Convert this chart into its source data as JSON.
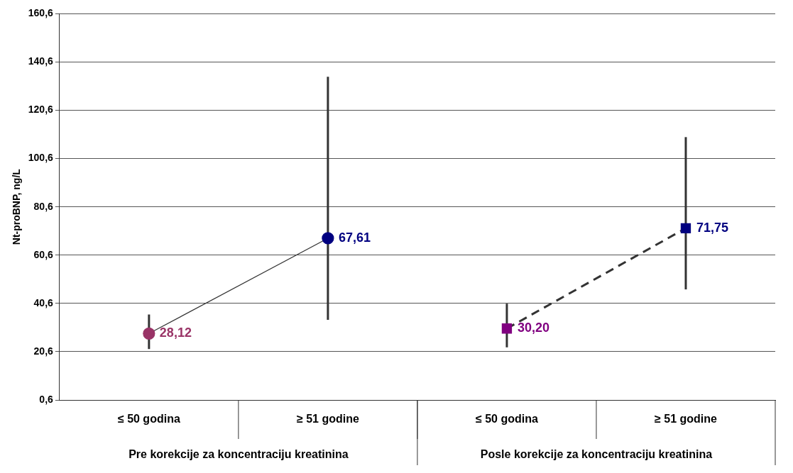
{
  "chart_data": {
    "type": "line",
    "ylabel": "Nt-proBNP, ng/L",
    "categories": [
      "≤ 50 godina",
      "≥ 51 godine",
      "≤ 50 godina",
      "≥ 51 godine"
    ],
    "annotations": [
      "Pre korekcije za koncentraciju kreatinina",
      "Posle korekcije za koncentraciju kreatinina"
    ],
    "series": [
      {
        "colors": [
          "#993366",
          "#000080",
          null,
          null
        ],
        "color": "#333333",
        "values": [
          28.12,
          67.61,
          null,
          null
        ],
        "value_labels": [
          "28,12",
          "67,61",
          null,
          null
        ],
        "errors": [
          [
            21.7,
            36.0
          ],
          [
            33.8,
            134.5
          ],
          null,
          null
        ],
        "marker": "circle",
        "line_style": "solid"
      },
      {
        "colors": [
          null,
          null,
          "#800080",
          "#000080"
        ],
        "color": "#333333",
        "values": [
          null,
          null,
          30.2,
          71.75
        ],
        "value_labels": [
          null,
          null,
          "30,20",
          "71,75"
        ],
        "errors": [
          null,
          null,
          [
            22.4,
            40.5
          ],
          [
            46.4,
            109.5
          ]
        ],
        "marker": "square",
        "line_style": "dashed"
      }
    ],
    "ylim": [
      0.6,
      160.6
    ],
    "yticks": [
      {
        "value": 0.6,
        "label": "0,6"
      },
      {
        "value": 20.6,
        "label": "20,6"
      },
      {
        "value": 40.6,
        "label": "40,6"
      },
      {
        "value": 60.6,
        "label": "60,6"
      },
      {
        "value": 80.6,
        "label": "80,6"
      },
      {
        "value": 100.6,
        "label": "100,6"
      },
      {
        "value": 120.6,
        "label": "120,6"
      },
      {
        "value": 140.6,
        "label": "140,6"
      },
      {
        "value": 160.6,
        "label": "160,6"
      }
    ],
    "grid": "y",
    "legend": false
  }
}
